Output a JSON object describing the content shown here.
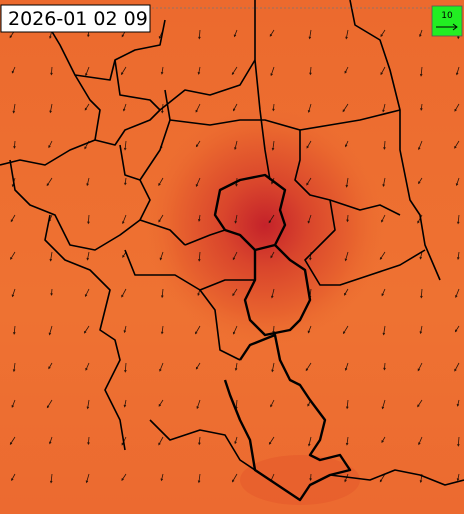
{
  "map": {
    "timestamp": "2026-01 02 09",
    "wind_legend": {
      "label": 10
    }
  }
}
